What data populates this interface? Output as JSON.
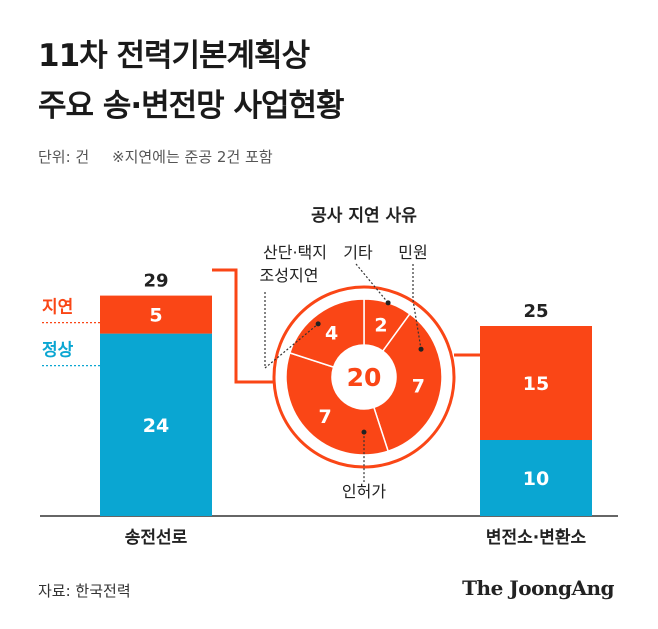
{
  "header": {
    "title_line1": "11차 전력기본계획상",
    "title_line2": "주요 송·변전망 사업현황",
    "unit": "단위: 건",
    "note": "※지연에는 준공 2건 포함"
  },
  "footer": {
    "source": "자료: 한국전력",
    "logo": "The JoongAng"
  },
  "colors": {
    "normal": "#0aa6d2",
    "delay": "#fa4616",
    "axis": "#333333"
  },
  "chart_data": [
    {
      "type": "bar",
      "stacked": true,
      "categories": [
        "송전선로",
        "변전소·변환소"
      ],
      "series": [
        {
          "name": "정상",
          "values": [
            24,
            10
          ]
        },
        {
          "name": "지연",
          "values": [
            5,
            15
          ]
        }
      ],
      "totals": [
        29,
        25
      ]
    },
    {
      "type": "pie",
      "title": "공사 지연 사유",
      "total": 20,
      "slices": [
        {
          "label": "기타",
          "value": 2
        },
        {
          "label": "민원",
          "value": 7
        },
        {
          "label": "인허가",
          "value": 7
        },
        {
          "label": "산단·택지 조성지연",
          "value": 4
        }
      ]
    }
  ]
}
